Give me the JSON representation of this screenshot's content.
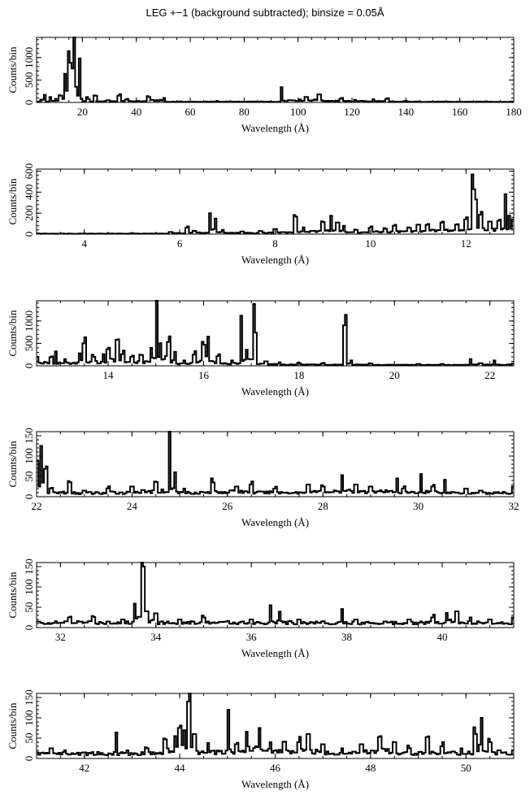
{
  "title": "LEG +−1 (background subtracted); binsize = 0.05Å",
  "chart_data": [
    {
      "type": "line",
      "xlabel": "Wavelength (Å)",
      "ylabel": "Counts/bin",
      "xlim": [
        3,
        180
      ],
      "ylim": [
        0,
        1450
      ],
      "xticks": [
        20,
        40,
        60,
        80,
        100,
        120,
        140,
        160,
        180
      ],
      "yticks": [
        0,
        500,
        1000
      ],
      "baseline": 25,
      "points": [
        [
          3,
          10
        ],
        [
          5,
          60
        ],
        [
          6,
          170
        ],
        [
          6.7,
          20
        ],
        [
          8,
          120
        ],
        [
          10,
          80
        ],
        [
          12,
          150
        ],
        [
          13.5,
          640
        ],
        [
          14.2,
          260
        ],
        [
          14.8,
          420
        ],
        [
          15.0,
          1400
        ],
        [
          15.3,
          520
        ],
        [
          16.0,
          660
        ],
        [
          16.5,
          300
        ],
        [
          16.8,
          960
        ],
        [
          17.1,
          1400
        ],
        [
          17.5,
          280
        ],
        [
          18.2,
          150
        ],
        [
          18.97,
          900
        ],
        [
          19.5,
          60
        ],
        [
          21.6,
          120
        ],
        [
          22.1,
          60
        ],
        [
          24.8,
          150
        ],
        [
          29.5,
          50
        ],
        [
          33.7,
          150
        ],
        [
          36.4,
          60
        ],
        [
          44.2,
          140
        ],
        [
          45.0,
          120
        ],
        [
          50.3,
          100
        ],
        [
          70,
          30
        ],
        [
          94,
          340
        ],
        [
          103,
          120
        ],
        [
          108,
          180
        ],
        [
          116,
          80
        ],
        [
          121,
          60
        ],
        [
          128,
          60
        ],
        [
          133,
          80
        ],
        [
          140,
          30
        ],
        [
          160,
          20
        ],
        [
          180,
          20
        ]
      ]
    },
    {
      "type": "line",
      "xlabel": "Wavelength (Å)",
      "ylabel": "Counts/bin",
      "xlim": [
        3,
        13
      ],
      "ylim": [
        0,
        620
      ],
      "xticks": [
        4,
        6,
        8,
        10,
        12
      ],
      "yticks": [
        0,
        200,
        400,
        600
      ],
      "baseline": 8,
      "points": [
        [
          3.0,
          8
        ],
        [
          5.0,
          8
        ],
        [
          5.8,
          20
        ],
        [
          6.15,
          60
        ],
        [
          6.3,
          30
        ],
        [
          6.64,
          200
        ],
        [
          6.75,
          120
        ],
        [
          6.9,
          40
        ],
        [
          7.3,
          25
        ],
        [
          7.7,
          30
        ],
        [
          8.0,
          40
        ],
        [
          8.42,
          140
        ],
        [
          8.6,
          60
        ],
        [
          9.0,
          100
        ],
        [
          9.17,
          175
        ],
        [
          9.3,
          110
        ],
        [
          9.45,
          80
        ],
        [
          9.7,
          40
        ],
        [
          10.0,
          60
        ],
        [
          10.3,
          50
        ],
        [
          10.5,
          80
        ],
        [
          10.8,
          60
        ],
        [
          11.0,
          90
        ],
        [
          11.2,
          80
        ],
        [
          11.5,
          110
        ],
        [
          11.8,
          90
        ],
        [
          12.0,
          140
        ],
        [
          12.13,
          570
        ],
        [
          12.2,
          330
        ],
        [
          12.3,
          180
        ],
        [
          12.5,
          120
        ],
        [
          12.7,
          110
        ],
        [
          12.83,
          320
        ],
        [
          12.9,
          170
        ],
        [
          13.0,
          140
        ]
      ]
    },
    {
      "type": "line",
      "xlabel": "Wavelength (Å)",
      "ylabel": "Counts/bin",
      "xlim": [
        12.5,
        22.5
      ],
      "ylim": [
        0,
        1450
      ],
      "xticks": [
        14,
        16,
        18,
        20,
        22
      ],
      "yticks": [
        0,
        500,
        1000
      ],
      "baseline": 25,
      "points": [
        [
          12.5,
          200
        ],
        [
          12.8,
          160
        ],
        [
          12.9,
          320
        ],
        [
          13.1,
          150
        ],
        [
          13.4,
          280
        ],
        [
          13.5,
          500
        ],
        [
          13.7,
          200
        ],
        [
          13.9,
          260
        ],
        [
          14.0,
          320
        ],
        [
          14.2,
          480
        ],
        [
          14.3,
          260
        ],
        [
          14.5,
          200
        ],
        [
          14.7,
          200
        ],
        [
          14.9,
          400
        ],
        [
          15.01,
          1380
        ],
        [
          15.1,
          500
        ],
        [
          15.26,
          530
        ],
        [
          15.4,
          250
        ],
        [
          15.6,
          120
        ],
        [
          15.8,
          250
        ],
        [
          16.0,
          470
        ],
        [
          16.1,
          650
        ],
        [
          16.3,
          200
        ],
        [
          16.6,
          120
        ],
        [
          16.78,
          980
        ],
        [
          16.9,
          300
        ],
        [
          17.05,
          1380
        ],
        [
          17.1,
          740
        ],
        [
          17.3,
          100
        ],
        [
          17.6,
          80
        ],
        [
          18.0,
          60
        ],
        [
          18.5,
          50
        ],
        [
          18.97,
          900
        ],
        [
          19.1,
          120
        ],
        [
          19.5,
          50
        ],
        [
          20.5,
          40
        ],
        [
          21.0,
          40
        ],
        [
          21.6,
          150
        ],
        [
          21.8,
          60
        ],
        [
          22.1,
          100
        ],
        [
          22.5,
          50
        ]
      ]
    },
    {
      "type": "line",
      "xlabel": "Wavelength (Å)",
      "ylabel": "Counts/bin",
      "xlim": [
        22,
        32
      ],
      "ylim": [
        0,
        160
      ],
      "xticks": [
        22,
        24,
        26,
        28,
        30,
        32
      ],
      "yticks": [
        0,
        50,
        100,
        150
      ],
      "baseline": 15,
      "points": [
        [
          22.0,
          80
        ],
        [
          22.1,
          125
        ],
        [
          22.2,
          60
        ],
        [
          22.3,
          20
        ],
        [
          22.7,
          30
        ],
        [
          23.0,
          15
        ],
        [
          23.5,
          20
        ],
        [
          24.0,
          25
        ],
        [
          24.5,
          30
        ],
        [
          24.78,
          150
        ],
        [
          24.9,
          60
        ],
        [
          25.1,
          20
        ],
        [
          25.7,
          35
        ],
        [
          26.2,
          25
        ],
        [
          26.5,
          30
        ],
        [
          27.0,
          20
        ],
        [
          27.7,
          30
        ],
        [
          28.0,
          25
        ],
        [
          28.4,
          40
        ],
        [
          28.7,
          30
        ],
        [
          29.0,
          25
        ],
        [
          29.55,
          45
        ],
        [
          29.7,
          20
        ],
        [
          30.05,
          55
        ],
        [
          30.3,
          25
        ],
        [
          30.55,
          35
        ],
        [
          31.0,
          20
        ],
        [
          31.3,
          15
        ],
        [
          32.0,
          25
        ]
      ]
    },
    {
      "type": "line",
      "xlabel": "Wavelength (Å)",
      "ylabel": "Counts/bin",
      "xlim": [
        31.5,
        41.5
      ],
      "ylim": [
        0,
        160
      ],
      "xticks": [
        32,
        34,
        36,
        38,
        40
      ],
      "yticks": [
        0,
        50,
        100,
        150
      ],
      "baseline": 20,
      "points": [
        [
          31.5,
          15
        ],
        [
          32.2,
          25
        ],
        [
          32.7,
          25
        ],
        [
          33.0,
          15
        ],
        [
          33.3,
          20
        ],
        [
          33.55,
          55
        ],
        [
          33.74,
          150
        ],
        [
          33.8,
          40
        ],
        [
          34.0,
          35
        ],
        [
          34.5,
          20
        ],
        [
          35.0,
          25
        ],
        [
          35.5,
          15
        ],
        [
          36.0,
          20
        ],
        [
          36.4,
          55
        ],
        [
          36.6,
          30
        ],
        [
          37.0,
          20
        ],
        [
          37.5,
          15
        ],
        [
          37.9,
          45
        ],
        [
          38.2,
          20
        ],
        [
          38.8,
          15
        ],
        [
          39.3,
          20
        ],
        [
          39.8,
          25
        ],
        [
          40.1,
          35
        ],
        [
          40.3,
          40
        ],
        [
          40.6,
          25
        ],
        [
          41.0,
          20
        ],
        [
          41.5,
          25
        ]
      ]
    },
    {
      "type": "line",
      "xlabel": "Wavelength (Å)",
      "ylabel": "Counts/bin",
      "xlim": [
        41,
        51
      ],
      "ylim": [
        0,
        160
      ],
      "xticks": [
        42,
        44,
        46,
        48,
        50
      ],
      "yticks": [
        0,
        50,
        100,
        150
      ],
      "baseline": 20,
      "points": [
        [
          41.0,
          15
        ],
        [
          41.3,
          25
        ],
        [
          41.6,
          20
        ],
        [
          42.0,
          15
        ],
        [
          42.67,
          55
        ],
        [
          42.9,
          20
        ],
        [
          43.3,
          25
        ],
        [
          43.7,
          40
        ],
        [
          43.9,
          55
        ],
        [
          44.0,
          75
        ],
        [
          44.1,
          60
        ],
        [
          44.2,
          140
        ],
        [
          44.3,
          60
        ],
        [
          44.6,
          30
        ],
        [
          45.02,
          120
        ],
        [
          45.2,
          35
        ],
        [
          45.4,
          55
        ],
        [
          45.67,
          75
        ],
        [
          45.9,
          40
        ],
        [
          46.2,
          35
        ],
        [
          46.5,
          40
        ],
        [
          46.7,
          60
        ],
        [
          47.0,
          35
        ],
        [
          47.4,
          25
        ],
        [
          47.8,
          35
        ],
        [
          48.2,
          45
        ],
        [
          48.5,
          40
        ],
        [
          48.8,
          25
        ],
        [
          49.2,
          45
        ],
        [
          49.5,
          30
        ],
        [
          49.9,
          25
        ],
        [
          50.2,
          60
        ],
        [
          50.32,
          100
        ],
        [
          50.5,
          40
        ],
        [
          50.7,
          20
        ],
        [
          51.0,
          20
        ]
      ]
    }
  ]
}
